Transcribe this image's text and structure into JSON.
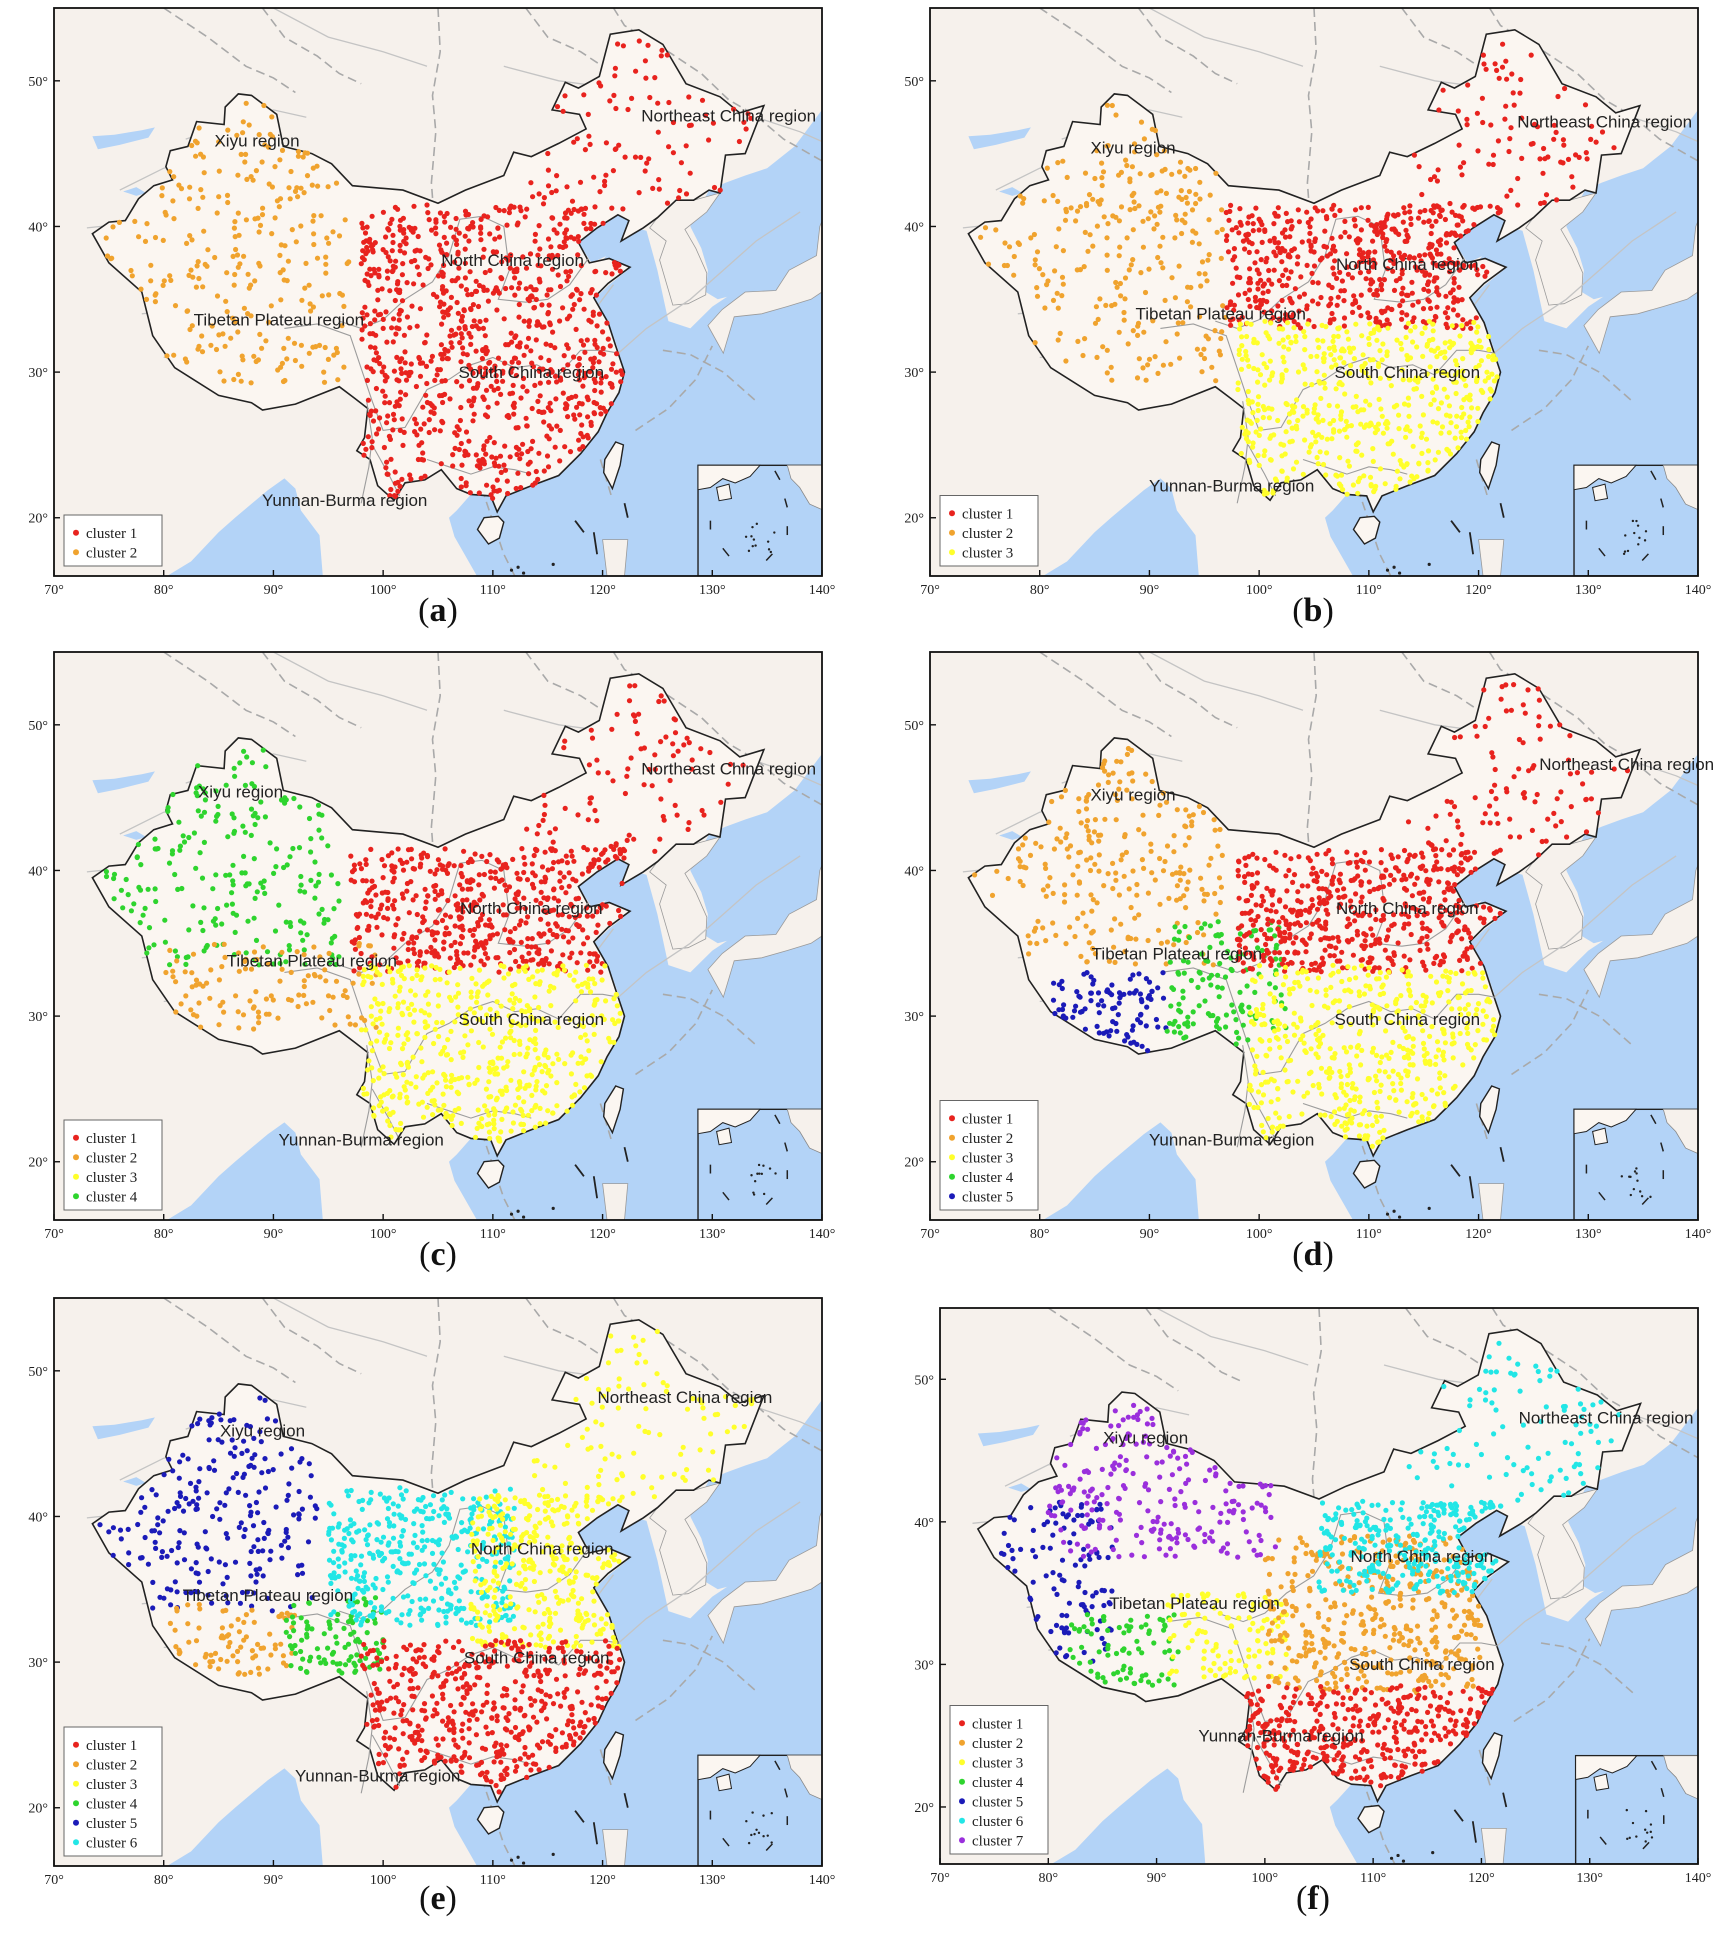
{
  "colors": {
    "ocean": "#b3d3f7",
    "land_china": "#fbf6f1",
    "land_other": "#f6f1ec",
    "border": "#222222",
    "cluster": {
      "red": "#e8231e",
      "orange": "#f0a32e",
      "yellow": "#ffff2a",
      "green": "#2ed42e",
      "blue": "#1b1bb8",
      "cyan": "#22e6e6",
      "purple": "#9a2fdc"
    }
  },
  "axes": {
    "lon_ticks": [
      "70°",
      "80°",
      "90°",
      "100°",
      "110°",
      "120°",
      "130°",
      "140°"
    ],
    "lat_ticks": [
      "20°",
      "30°",
      "40°",
      "50°"
    ],
    "lon_range": [
      70,
      140
    ],
    "lat_range": [
      16,
      55
    ]
  },
  "panels": [
    {
      "id": "a",
      "caption_letter": "a",
      "legend": [
        {
          "label": "cluster 1",
          "color": "red"
        },
        {
          "label": "cluster 2",
          "color": "orange"
        }
      ],
      "region_labels": [
        {
          "text": "Xiyu region",
          "lon": 88.5,
          "lat": 45.5
        },
        {
          "text": "Northeast China region",
          "lon": 131.5,
          "lat": 47.2
        },
        {
          "text": "North China region",
          "lon": 111.8,
          "lat": 37.3
        },
        {
          "text": "Tibetan Plateau region",
          "lon": 90.5,
          "lat": 33.2
        },
        {
          "text": "South China region",
          "lon": 113.5,
          "lat": 29.6
        },
        {
          "text": "Yunnan-Burma region",
          "lon": 96.5,
          "lat": 20.8
        }
      ],
      "zones": [
        {
          "color": "orange",
          "lon": [
            74,
            97
          ],
          "lat": [
            29,
            48.5
          ],
          "n": 260,
          "w": 1
        },
        {
          "color": "red",
          "lon": [
            98,
            122
          ],
          "lat": [
            21,
            41.5
          ],
          "n": 900,
          "w": 1
        },
        {
          "color": "red",
          "lon": [
            113,
            134
          ],
          "lat": [
            41,
            53
          ],
          "n": 95,
          "w": 0.15
        }
      ]
    },
    {
      "id": "b",
      "caption_letter": "b",
      "legend": [
        {
          "label": "cluster 1",
          "color": "red"
        },
        {
          "label": "cluster 2",
          "color": "orange"
        },
        {
          "label": "cluster 3",
          "color": "yellow"
        }
      ],
      "region_labels": [
        {
          "text": "Xiyu region",
          "lon": 88.5,
          "lat": 45.0
        },
        {
          "text": "Northeast China region",
          "lon": 131.5,
          "lat": 46.8
        },
        {
          "text": "North China region",
          "lon": 113.5,
          "lat": 37.0
        },
        {
          "text": "Tibetan Plateau region",
          "lon": 96.5,
          "lat": 33.6
        },
        {
          "text": "South China region",
          "lon": 113.5,
          "lat": 29.6
        },
        {
          "text": "Yunnan-Burma region",
          "lon": 97.5,
          "lat": 21.8
        }
      ],
      "zones": [
        {
          "color": "orange",
          "lon": [
            74,
            97
          ],
          "lat": [
            29,
            48.5
          ],
          "n": 260,
          "w": 1
        },
        {
          "color": "red",
          "lon": [
            97,
            122
          ],
          "lat": [
            33,
            41.5
          ],
          "n": 520,
          "w": 1
        },
        {
          "color": "yellow",
          "lon": [
            98,
            122
          ],
          "lat": [
            21,
            33.5
          ],
          "n": 520,
          "w": 1
        },
        {
          "color": "red",
          "lon": [
            113,
            134
          ],
          "lat": [
            41,
            53
          ],
          "n": 95,
          "w": 0.15
        }
      ]
    },
    {
      "id": "c",
      "caption_letter": "c",
      "legend": [
        {
          "label": "cluster 1",
          "color": "red"
        },
        {
          "label": "cluster 2",
          "color": "orange"
        },
        {
          "label": "cluster 3",
          "color": "yellow"
        },
        {
          "label": "cluster 4",
          "color": "green"
        }
      ],
      "region_labels": [
        {
          "text": "Xiyu region",
          "lon": 87.0,
          "lat": 45.0
        },
        {
          "text": "Northeast China region",
          "lon": 131.5,
          "lat": 46.6
        },
        {
          "text": "North China region",
          "lon": 113.5,
          "lat": 37.0
        },
        {
          "text": "Tibetan Plateau region",
          "lon": 93.5,
          "lat": 33.4
        },
        {
          "text": "South China region",
          "lon": 113.5,
          "lat": 29.4
        },
        {
          "text": "Yunnan-Burma region",
          "lon": 98.0,
          "lat": 21.1
        }
      ],
      "zones": [
        {
          "color": "green",
          "lon": [
            74,
            96
          ],
          "lat": [
            33.5,
            48.5
          ],
          "n": 220,
          "w": 1
        },
        {
          "color": "orange",
          "lon": [
            80,
            100
          ],
          "lat": [
            29,
            35
          ],
          "n": 110,
          "w": 1
        },
        {
          "color": "red",
          "lon": [
            97,
            122
          ],
          "lat": [
            33,
            41.5
          ],
          "n": 520,
          "w": 1
        },
        {
          "color": "yellow",
          "lon": [
            98,
            122
          ],
          "lat": [
            21,
            33.5
          ],
          "n": 520,
          "w": 1
        },
        {
          "color": "red",
          "lon": [
            113,
            134
          ],
          "lat": [
            41,
            53
          ],
          "n": 95,
          "w": 0.15
        }
      ]
    },
    {
      "id": "d",
      "caption_letter": "d",
      "legend": [
        {
          "label": "cluster 1",
          "color": "red"
        },
        {
          "label": "cluster 2",
          "color": "orange"
        },
        {
          "label": "cluster 3",
          "color": "yellow"
        },
        {
          "label": "cluster 4",
          "color": "green"
        },
        {
          "label": "cluster 5",
          "color": "blue"
        }
      ],
      "region_labels": [
        {
          "text": "Xiyu region",
          "lon": 88.5,
          "lat": 44.8
        },
        {
          "text": "Northeast China region",
          "lon": 133.5,
          "lat": 46.9
        },
        {
          "text": "North China region",
          "lon": 113.5,
          "lat": 37.0
        },
        {
          "text": "Tibetan Plateau region",
          "lon": 92.5,
          "lat": 33.9
        },
        {
          "text": "South China region",
          "lon": 113.5,
          "lat": 29.4
        },
        {
          "text": "Yunnan-Burma region",
          "lon": 97.5,
          "lat": 21.1
        }
      ],
      "zones": [
        {
          "color": "orange",
          "lon": [
            74,
            97
          ],
          "lat": [
            33.5,
            48.5
          ],
          "n": 240,
          "w": 1
        },
        {
          "color": "blue",
          "lon": [
            81,
            91.5
          ],
          "lat": [
            27.5,
            33
          ],
          "n": 95,
          "w": 1
        },
        {
          "color": "green",
          "lon": [
            91.5,
            102.5
          ],
          "lat": [
            28,
            36.5
          ],
          "n": 130,
          "w": 1
        },
        {
          "color": "red",
          "lon": [
            98,
            122
          ],
          "lat": [
            33,
            41.5
          ],
          "n": 520,
          "w": 1
        },
        {
          "color": "yellow",
          "lon": [
            99,
            122
          ],
          "lat": [
            21,
            33.5
          ],
          "n": 480,
          "w": 1
        },
        {
          "color": "red",
          "lon": [
            113,
            134
          ],
          "lat": [
            41,
            53
          ],
          "n": 95,
          "w": 0.15
        }
      ]
    },
    {
      "id": "e",
      "caption_letter": "e",
      "legend": [
        {
          "label": "cluster 1",
          "color": "red"
        },
        {
          "label": "cluster 2",
          "color": "orange"
        },
        {
          "label": "cluster 3",
          "color": "yellow"
        },
        {
          "label": "cluster 4",
          "color": "green"
        },
        {
          "label": "cluster 5",
          "color": "blue"
        },
        {
          "label": "cluster 6",
          "color": "cyan"
        }
      ],
      "region_labels": [
        {
          "text": "Xiyu region",
          "lon": 89.0,
          "lat": 45.5
        },
        {
          "text": "Northeast China region",
          "lon": 127.5,
          "lat": 47.8
        },
        {
          "text": "North China region",
          "lon": 114.5,
          "lat": 37.4
        },
        {
          "text": "Tibetan Plateau region",
          "lon": 89.5,
          "lat": 34.2
        },
        {
          "text": "South China region",
          "lon": 114.0,
          "lat": 29.9
        },
        {
          "text": "Yunnan-Burma region",
          "lon": 99.5,
          "lat": 21.8
        }
      ],
      "zones": [
        {
          "color": "blue",
          "lon": [
            74,
            94
          ],
          "lat": [
            33.5,
            48.5
          ],
          "n": 230,
          "w": 1
        },
        {
          "color": "orange",
          "lon": [
            80,
            92
          ],
          "lat": [
            29,
            34
          ],
          "n": 80,
          "w": 1
        },
        {
          "color": "green",
          "lon": [
            91,
            100
          ],
          "lat": [
            29,
            34.5
          ],
          "n": 100,
          "w": 1
        },
        {
          "color": "cyan",
          "lon": [
            95,
            112
          ],
          "lat": [
            32.5,
            42
          ],
          "n": 380,
          "w": 1
        },
        {
          "color": "yellow",
          "lon": [
            108,
            122
          ],
          "lat": [
            31,
            41.5
          ],
          "n": 330,
          "w": 1
        },
        {
          "color": "red",
          "lon": [
            98,
            122
          ],
          "lat": [
            21,
            31.5
          ],
          "n": 480,
          "w": 1
        },
        {
          "color": "yellow",
          "lon": [
            113,
            134
          ],
          "lat": [
            41,
            53
          ],
          "n": 95,
          "w": 0.15
        }
      ]
    },
    {
      "id": "f",
      "caption_letter": "f",
      "legend": [
        {
          "label": "cluster 1",
          "color": "red"
        },
        {
          "label": "cluster 2",
          "color": "orange"
        },
        {
          "label": "cluster 3",
          "color": "yellow"
        },
        {
          "label": "cluster 4",
          "color": "green"
        },
        {
          "label": "cluster 5",
          "color": "blue"
        },
        {
          "label": "cluster 6",
          "color": "cyan"
        },
        {
          "label": "cluster 7",
          "color": "purple"
        }
      ],
      "region_labels": [
        {
          "text": "Xiyu region",
          "lon": 89.0,
          "lat": 45.5
        },
        {
          "text": "Northeast China region",
          "lon": 131.5,
          "lat": 46.9
        },
        {
          "text": "North China region",
          "lon": 114.5,
          "lat": 37.2
        },
        {
          "text": "Tibetan Plateau region",
          "lon": 93.5,
          "lat": 33.9
        },
        {
          "text": "South China region",
          "lon": 114.5,
          "lat": 29.6
        },
        {
          "text": "Yunnan-Burma region",
          "lon": 101.5,
          "lat": 24.6
        }
      ],
      "zones": [
        {
          "color": "blue",
          "lon": [
            74,
            86
          ],
          "lat": [
            30,
            41.5
          ],
          "n": 110,
          "w": 1
        },
        {
          "color": "purple",
          "lon": [
            80,
            101
          ],
          "lat": [
            37.5,
            48.5
          ],
          "n": 220,
          "w": 1
        },
        {
          "color": "green",
          "lon": [
            82,
            92
          ],
          "lat": [
            28.5,
            33.5
          ],
          "n": 80,
          "w": 1
        },
        {
          "color": "yellow",
          "lon": [
            91,
            102
          ],
          "lat": [
            29,
            35
          ],
          "n": 110,
          "w": 1
        },
        {
          "color": "orange",
          "lon": [
            100,
            120
          ],
          "lat": [
            28,
            39
          ],
          "n": 420,
          "w": 1
        },
        {
          "color": "cyan",
          "lon": [
            105,
            122
          ],
          "lat": [
            35,
            41.5
          ],
          "n": 280,
          "w": 1
        },
        {
          "color": "red",
          "lon": [
            98,
            122
          ],
          "lat": [
            21,
            28.5
          ],
          "n": 380,
          "w": 1
        },
        {
          "color": "cyan",
          "lon": [
            113,
            134
          ],
          "lat": [
            41,
            53
          ],
          "n": 95,
          "w": 0.15
        }
      ]
    }
  ]
}
